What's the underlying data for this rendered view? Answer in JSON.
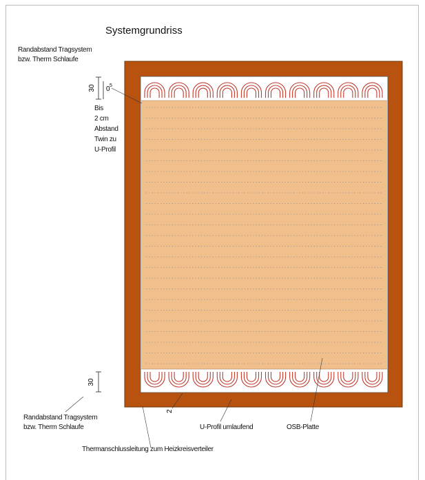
{
  "title": "Systemgrundriss",
  "labels": {
    "top_left_line1": "Randabstand Tragsystem",
    "top_left_line2": "bzw. Therm Schlaufe",
    "dim_top": "30",
    "dim_gap": "0",
    "dim_gap_sup": "5",
    "bis_lines": [
      "Bis",
      "2 cm",
      "Abstand",
      "Twin zu",
      "U-Profil"
    ],
    "dim_bottom": "30",
    "bottom_left_line1": "Randabstand Tragsystem",
    "bottom_left_line2": "bzw. Therm Schlaufe",
    "dim_small": "2",
    "u_profil": "U-Profil umlaufend",
    "osb": "OSB-Platte",
    "anschluss": "Thermanschlussleitung zum Heizkreisverteiler"
  },
  "colors": {
    "frame": "#b8520f",
    "panel": "#f0bf8c",
    "loop": "#c0392b",
    "loop_band": "#ffffff",
    "dotted": "#8a8a8a"
  }
}
